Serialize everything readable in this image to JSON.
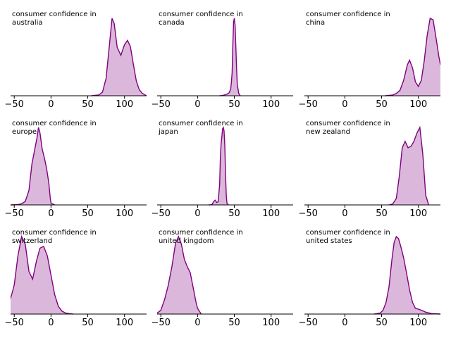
{
  "chart_data": {
    "type": "area",
    "chart_kind": "density small multiples (3x3 grid)",
    "xlim": [
      -55,
      130
    ],
    "x_ticks": [
      "−50",
      "0",
      "50",
      "100"
    ],
    "x_tick_values": [
      -50,
      0,
      50,
      100
    ],
    "y_axis_visible": false,
    "grid": false,
    "fill_color": "#dbb8db",
    "line_color": "#800080",
    "panels": [
      {
        "title": [
          "consumer confidence in",
          "australia"
        ],
        "x": [
          55,
          65,
          70,
          75,
          80,
          83,
          86,
          90,
          95,
          100,
          104,
          108,
          112,
          116,
          120,
          124,
          128,
          130
        ],
        "y": [
          0,
          0.01,
          0.04,
          0.2,
          0.62,
          0.88,
          0.82,
          0.55,
          0.46,
          0.58,
          0.63,
          0.56,
          0.36,
          0.17,
          0.07,
          0.03,
          0.01,
          0
        ]
      },
      {
        "title": [
          "consumer confidence in",
          "canada"
        ],
        "x": [
          30,
          33,
          36,
          40,
          43,
          45,
          46,
          47,
          48,
          49,
          50,
          51,
          52,
          53,
          54,
          56,
          58
        ],
        "y": [
          0,
          0.01,
          0.03,
          0.07,
          0.13,
          0.28,
          0.6,
          1.0,
          2.3,
          3.2,
          3.35,
          3.05,
          2.2,
          1.2,
          0.5,
          0.1,
          0
        ]
      },
      {
        "title": [
          "consumer confidence in",
          "china"
        ],
        "x": [
          55,
          65,
          70,
          75,
          80,
          85,
          88,
          92,
          96,
          100,
          104,
          108,
          112,
          116,
          120,
          124,
          128,
          130
        ],
        "y": [
          0,
          0.01,
          0.03,
          0.07,
          0.2,
          0.4,
          0.46,
          0.36,
          0.18,
          0.12,
          0.2,
          0.45,
          0.78,
          1.0,
          0.98,
          0.75,
          0.5,
          0.4
        ]
      },
      {
        "title": [
          "consumer confidence in",
          "europe"
        ],
        "x": [
          -55,
          -45,
          -40,
          -35,
          -30,
          -26,
          -22,
          -19,
          -17,
          -15,
          -12,
          -9,
          -6,
          -3,
          -1,
          0,
          5
        ],
        "y": [
          0,
          0.005,
          0.02,
          0.06,
          0.25,
          0.7,
          0.95,
          1.15,
          1.32,
          1.23,
          0.95,
          0.8,
          0.62,
          0.38,
          0.12,
          0.03,
          0
        ]
      },
      {
        "title": [
          "consumer confidence in",
          "japan"
        ],
        "x": [
          15,
          18,
          20,
          22,
          24,
          26,
          28,
          30,
          31,
          32,
          33,
          34,
          35,
          36,
          37,
          38,
          39,
          40,
          42
        ],
        "y": [
          0,
          0.01,
          0.05,
          0.22,
          0.3,
          0.15,
          0.2,
          1.3,
          3.0,
          3.9,
          4.3,
          4.8,
          4.9,
          4.7,
          3.8,
          2.0,
          0.6,
          0.1,
          0
        ]
      },
      {
        "title": [
          "consumer confidence in",
          "new zealand"
        ],
        "x": [
          60,
          65,
          70,
          74,
          78,
          82,
          86,
          90,
          94,
          98,
          102,
          106,
          110,
          114
        ],
        "y": [
          0,
          0.01,
          0.08,
          0.35,
          0.7,
          0.78,
          0.7,
          0.72,
          0.78,
          0.88,
          0.95,
          0.62,
          0.12,
          0
        ]
      },
      {
        "title": [
          "consumer confidence in",
          "switzerland"
        ],
        "x": [
          -55,
          -50,
          -45,
          -40,
          -35,
          -30,
          -25,
          -20,
          -15,
          -10,
          -5,
          0,
          5,
          10,
          15,
          20,
          25,
          30
        ],
        "y": [
          0.08,
          0.15,
          0.3,
          0.4,
          0.36,
          0.22,
          0.18,
          0.27,
          0.34,
          0.35,
          0.3,
          0.2,
          0.1,
          0.04,
          0.015,
          0.005,
          0.002,
          0
        ]
      },
      {
        "title": [
          "consumer confidence in",
          "united kingdom"
        ],
        "x": [
          -60,
          -55,
          -50,
          -45,
          -40,
          -35,
          -30,
          -26,
          -22,
          -18,
          -14,
          -10,
          -6,
          -2,
          0,
          5
        ],
        "y": [
          0,
          0.01,
          0.04,
          0.15,
          0.3,
          0.5,
          0.75,
          0.82,
          0.74,
          0.58,
          0.5,
          0.44,
          0.28,
          0.12,
          0.06,
          0
        ]
      },
      {
        "title": [
          "consumer confidence in",
          "united states"
        ],
        "x": [
          40,
          48,
          52,
          56,
          60,
          64,
          67,
          70,
          73,
          76,
          80,
          84,
          88,
          92,
          96,
          100,
          104,
          110,
          118,
          130
        ],
        "y": [
          0,
          0.01,
          0.04,
          0.12,
          0.28,
          0.56,
          0.74,
          0.8,
          0.78,
          0.7,
          0.58,
          0.42,
          0.25,
          0.12,
          0.06,
          0.05,
          0.04,
          0.02,
          0.005,
          0
        ]
      }
    ]
  }
}
